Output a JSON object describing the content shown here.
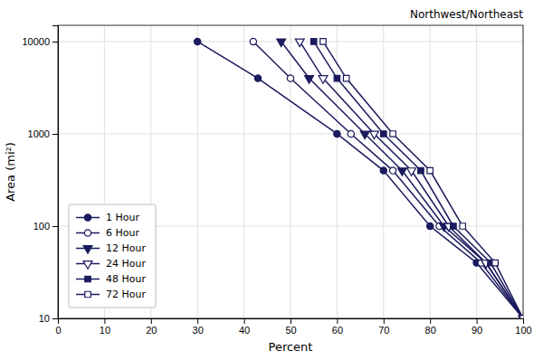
{
  "chart_data": {
    "type": "line",
    "title": "Northwest/Northeast",
    "xlabel": "Percent",
    "ylabel": "Area (mi²)",
    "log": "y",
    "grid": true,
    "legend": "lower left",
    "xlim": [
      0,
      100
    ],
    "ylim": [
      10,
      15000
    ],
    "xticks": [
      0,
      10,
      20,
      30,
      40,
      50,
      60,
      70,
      80,
      90,
      100
    ],
    "yticks": [
      10,
      100,
      1000,
      10000
    ],
    "series": [
      {
        "name": "1 Hour",
        "color": "#1a1a5e",
        "marker": "circle",
        "x": [
          30,
          43,
          60,
          70,
          80,
          90,
          100
        ],
        "values": [
          10000,
          4000,
          1000,
          400,
          100,
          40,
          10
        ]
      },
      {
        "name": "6 Hour",
        "color": "#1a1a5e",
        "marker": "circle-open",
        "x": [
          42,
          50,
          63,
          72,
          82,
          91,
          100
        ],
        "values": [
          10000,
          4000,
          1000,
          400,
          100,
          40,
          10
        ]
      },
      {
        "name": "12 Hour",
        "color": "#1a1a5e",
        "marker": "triangle-down",
        "x": [
          48,
          54,
          66,
          74,
          83,
          92,
          100
        ],
        "values": [
          10000,
          4000,
          1000,
          400,
          100,
          40,
          10
        ]
      },
      {
        "name": "24 Hour",
        "color": "#1a1a5e",
        "marker": "triangle-down-open",
        "x": [
          52,
          57,
          68,
          76,
          84,
          92,
          100
        ],
        "values": [
          10000,
          4000,
          1000,
          400,
          100,
          40,
          10
        ]
      },
      {
        "name": "48 Hour",
        "color": "#1a1a5e",
        "marker": "square",
        "x": [
          55,
          60,
          70,
          78,
          85,
          93,
          100
        ],
        "values": [
          10000,
          4000,
          1000,
          400,
          100,
          40,
          10
        ]
      },
      {
        "name": "72 Hour",
        "color": "#1a1a5e",
        "marker": "square-open",
        "x": [
          57,
          62,
          72,
          80,
          87,
          94,
          100
        ],
        "values": [
          10000,
          4000,
          1000,
          400,
          100,
          40,
          10
        ]
      }
    ]
  }
}
